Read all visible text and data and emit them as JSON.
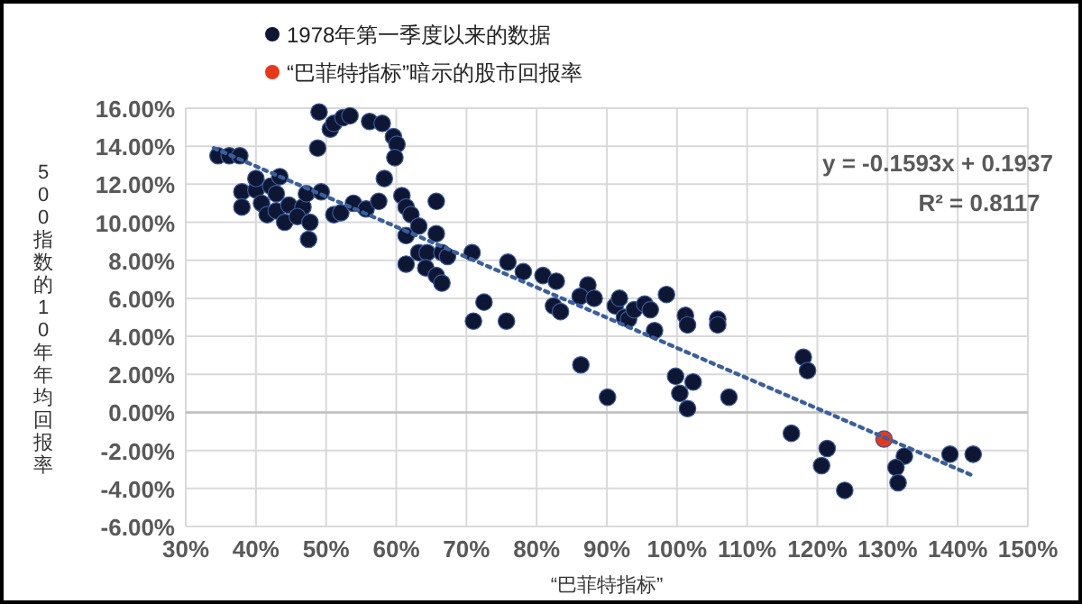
{
  "chart_data": {
    "type": "scatter",
    "xlabel": "“巴菲特指标”",
    "ylabel": "500指数的10年年均回报率",
    "xlim": [
      30,
      150
    ],
    "xticks": [
      {
        "value": 30,
        "label": "30%"
      },
      {
        "value": 40,
        "label": "40%"
      },
      {
        "value": 50,
        "label": "50%"
      },
      {
        "value": 60,
        "label": "60%"
      },
      {
        "value": 70,
        "label": "70%"
      },
      {
        "value": 80,
        "label": "80%"
      },
      {
        "value": 90,
        "label": "90%"
      },
      {
        "value": 100,
        "label": "100%"
      },
      {
        "value": 110,
        "label": "110%"
      },
      {
        "value": 120,
        "label": "120%"
      },
      {
        "value": 130,
        "label": "130%"
      },
      {
        "value": 140,
        "label": "140%"
      },
      {
        "value": 150,
        "label": "150%"
      }
    ],
    "ylim": [
      -6,
      16
    ],
    "yticks": [
      {
        "value": -6,
        "label": "-6.00%"
      },
      {
        "value": -4,
        "label": "-4.00%"
      },
      {
        "value": -2,
        "label": "-2.00%"
      },
      {
        "value": 0,
        "label": "0.00%"
      },
      {
        "value": 2,
        "label": "2.00%"
      },
      {
        "value": 4,
        "label": "4.00%"
      },
      {
        "value": 6,
        "label": "6.00%"
      },
      {
        "value": 8,
        "label": "8.00%"
      },
      {
        "value": 10,
        "label": "10.00%"
      },
      {
        "value": 12,
        "label": "12.00%"
      },
      {
        "value": 14,
        "label": "14.00%"
      },
      {
        "value": 16,
        "label": "16.00%"
      }
    ],
    "grid": true,
    "legend": "top",
    "marker": "circle",
    "annotations": [
      "y = -0.1593x + 0.1937",
      "R² = 0.8117"
    ],
    "series": [
      {
        "name": "1978年第一季度以来的数据",
        "color": "#0d1633",
        "x": [
          34.6,
          36.2,
          37.7,
          38,
          38,
          40,
          40,
          40.8,
          41.6,
          42.1,
          42.9,
          43.4,
          42.9,
          44.1,
          44.7,
          46.7,
          47.2,
          45.9,
          47.7,
          47.5,
          49.0,
          48.8,
          49.3,
          50.6,
          51.1,
          52.4,
          53.4,
          56.2,
          58.0,
          59.6,
          60.1,
          59.8,
          58.3,
          60.8,
          51.1,
          52.1,
          53.9,
          55.7,
          57.5,
          61.4,
          62.1,
          61.4,
          63.2,
          63.2,
          64.4,
          64.2,
          66.5,
          61.4,
          65.7,
          65.7,
          65.7,
          67.3,
          66.5,
          70.8,
          71.0,
          72.5,
          75.7,
          75.9,
          78.1,
          80.9,
          82.8,
          82.4,
          83.4,
          87.3,
          86.2,
          88.2,
          91.2,
          91.8,
          92.5,
          93.1,
          93.9,
          95.4,
          96.2,
          96.8,
          98.5,
          86.3,
          90.1,
          101.2,
          101.5,
          105.8,
          105.8,
          99.8,
          100.4,
          102.3,
          101.5,
          107.4,
          118.0,
          118.6,
          116.3,
          121.4,
          120.6,
          123.9,
          132.4,
          131.2,
          131.5,
          138.9,
          142.2
        ],
        "values": [
          13.5,
          13.5,
          13.5,
          11.6,
          10.8,
          11.7,
          12.3,
          11.0,
          10.4,
          11.9,
          11.5,
          12.4,
          10.6,
          10.0,
          10.9,
          10.8,
          11.5,
          10.3,
          10.0,
          9.1,
          15.8,
          13.9,
          11.6,
          14.9,
          15.2,
          15.5,
          15.6,
          15.3,
          15.2,
          14.5,
          14.1,
          13.4,
          12.3,
          11.4,
          10.4,
          10.5,
          11.0,
          10.7,
          11.1,
          10.8,
          10.4,
          9.3,
          9.8,
          8.4,
          8.4,
          7.6,
          8.4,
          7.8,
          7.2,
          11.1,
          9.4,
          8.2,
          6.8,
          8.4,
          4.8,
          5.8,
          4.8,
          7.9,
          7.4,
          7.2,
          6.9,
          5.6,
          5.3,
          6.7,
          6.1,
          6.0,
          5.6,
          6.0,
          5.0,
          4.9,
          5.4,
          5.7,
          5.4,
          4.3,
          6.2,
          2.5,
          0.8,
          5.1,
          4.6,
          4.9,
          4.6,
          1.9,
          1.0,
          1.6,
          0.2,
          0.8,
          2.9,
          2.2,
          -1.1,
          -1.9,
          -2.8,
          -4.1,
          -2.3,
          -2.9,
          -3.7,
          -2.2,
          -2.2
        ]
      },
      {
        "name": "“巴菲特指标”暗示的股市回报率",
        "color": "#e8381a",
        "x": [
          129.5
        ],
        "values": [
          -1.4
        ]
      },
      {
        "type": "line",
        "marker": "none",
        "line_style": "dotted",
        "color": "#3a5f9e",
        "x": [
          34,
          142
        ],
        "values": [
          13.9,
          -3.3
        ]
      }
    ]
  }
}
